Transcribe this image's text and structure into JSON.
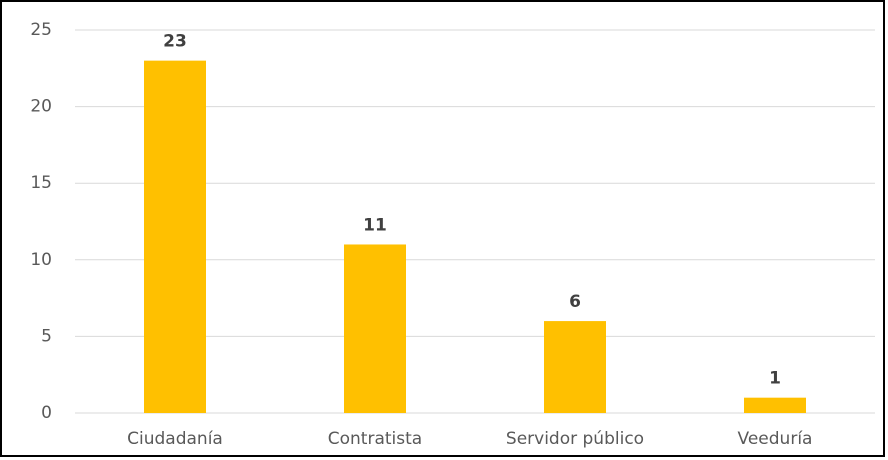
{
  "chart_data": {
    "type": "bar",
    "categories": [
      "Ciudadanía",
      "Contratista",
      "Servidor público",
      "Veeduría"
    ],
    "values": [
      23,
      11,
      6,
      1
    ],
    "color": "#ffc000",
    "ylim": [
      0,
      25
    ],
    "yticks": [
      0,
      5,
      10,
      15,
      20,
      25
    ],
    "grid": true,
    "data_labels": true
  }
}
